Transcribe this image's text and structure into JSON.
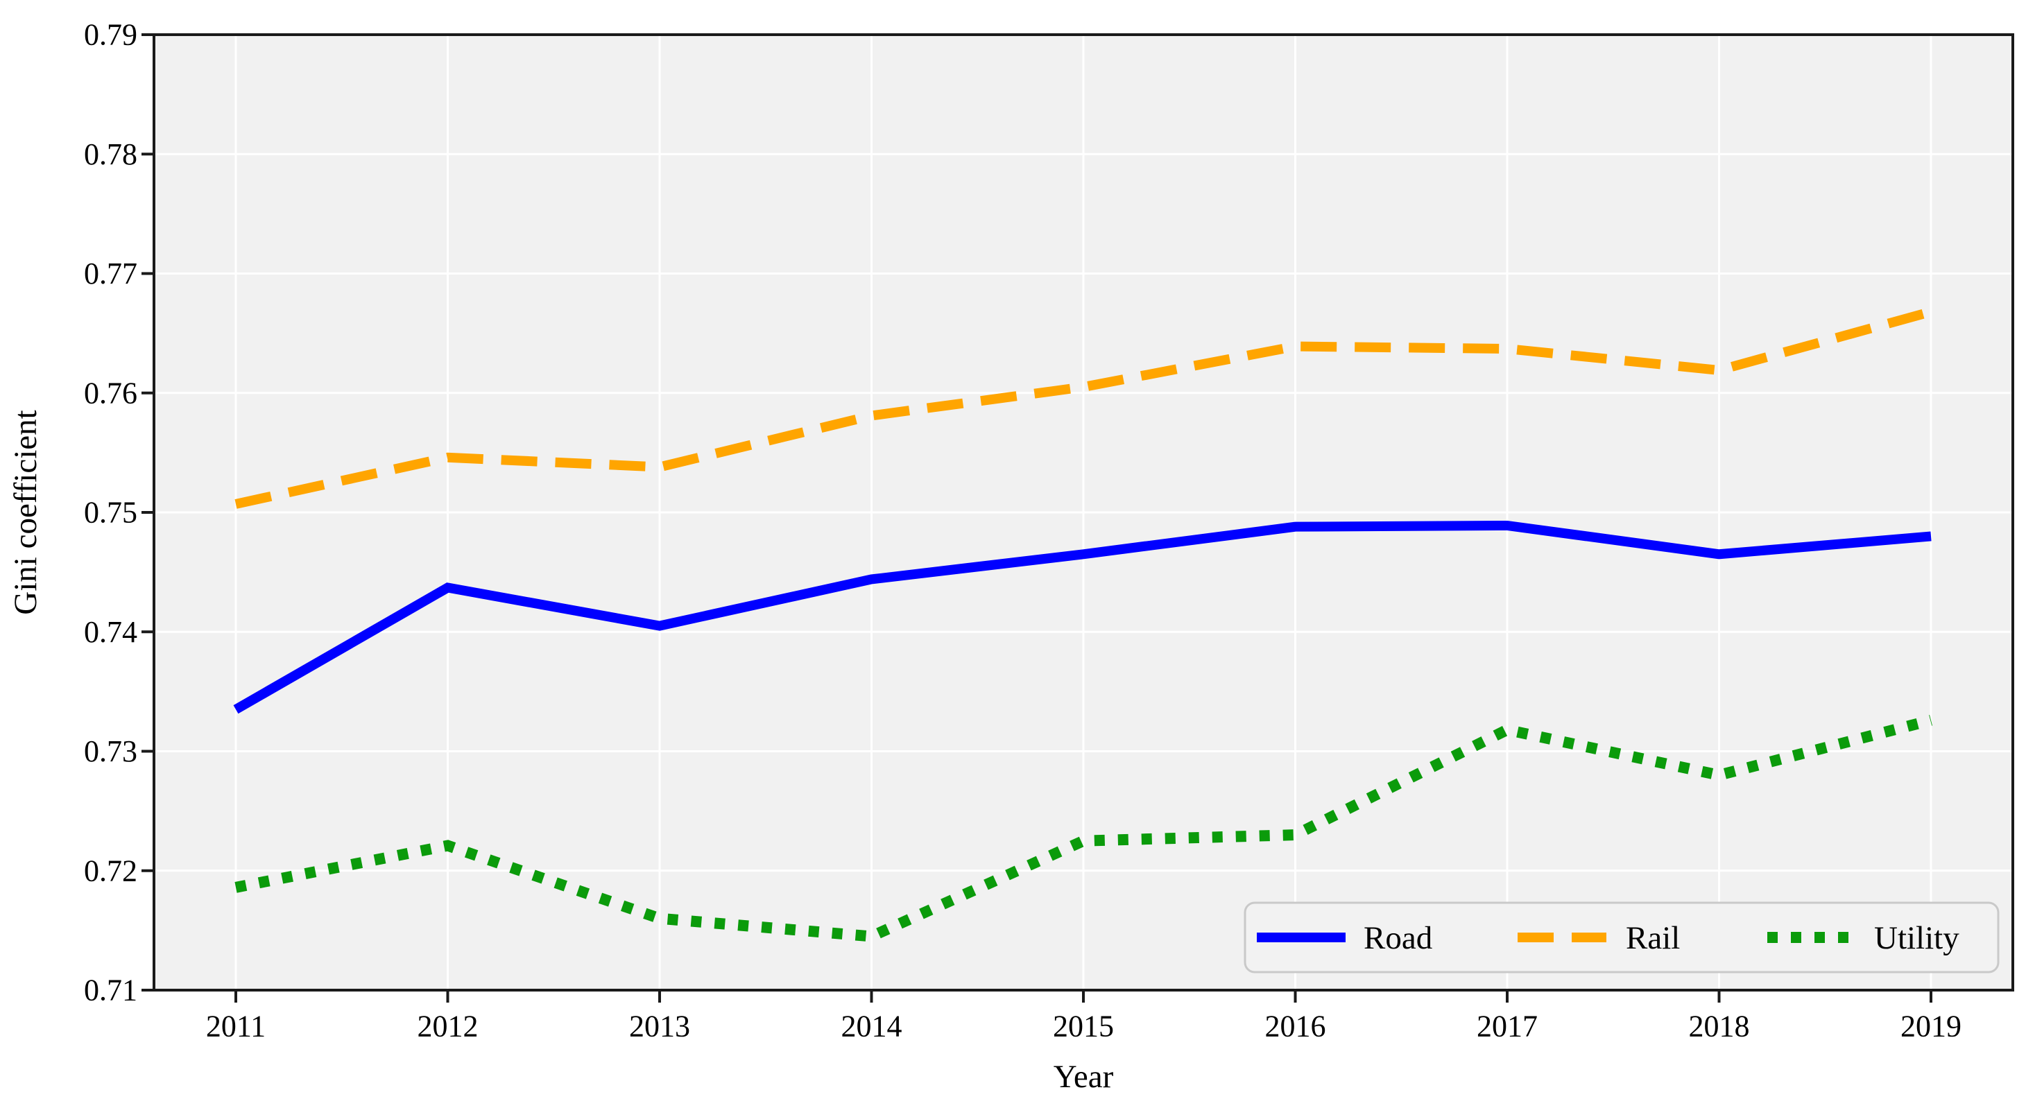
{
  "chart_data": {
    "type": "line",
    "title": "",
    "xlabel": "Year",
    "ylabel": "Gini coefficient",
    "x": [
      2011,
      2012,
      2013,
      2014,
      2015,
      2016,
      2017,
      2018,
      2019
    ],
    "x_tick_labels": [
      "2011",
      "2012",
      "2013",
      "2014",
      "2015",
      "2016",
      "2017",
      "2018",
      "2019"
    ],
    "ylim": [
      0.71,
      0.79
    ],
    "yticks": [
      0.71,
      0.72,
      0.73,
      0.74,
      0.75,
      0.76,
      0.77,
      0.78,
      0.79
    ],
    "ytick_labels": [
      "0.71",
      "0.72",
      "0.73",
      "0.74",
      "0.75",
      "0.76",
      "0.77",
      "0.78",
      "0.79"
    ],
    "grid": true,
    "legend_position": "lower right",
    "colors": {
      "plot_background": "#f1f1f1",
      "grid": "#ffffff",
      "spine": "#1a1a1a",
      "legend_background": "#f2f2f2",
      "legend_border": "#c9c9c9"
    },
    "series": [
      {
        "name": "Road",
        "color": "#0000ff",
        "style": "solid",
        "values": [
          0.7335,
          0.7437,
          0.7405,
          0.7444,
          0.7465,
          0.7488,
          0.7489,
          0.7465,
          0.748
        ]
      },
      {
        "name": "Rail",
        "color": "#ffa500",
        "style": "dashed",
        "values": [
          0.7507,
          0.7546,
          0.7538,
          0.7581,
          0.7605,
          0.7639,
          0.7637,
          0.7619,
          0.7668
        ]
      },
      {
        "name": "Utility",
        "color": "#0b9b0b",
        "style": "dotted",
        "values": [
          0.7186,
          0.7221,
          0.716,
          0.7145,
          0.7225,
          0.723,
          0.7318,
          0.728,
          0.7326
        ]
      }
    ]
  }
}
